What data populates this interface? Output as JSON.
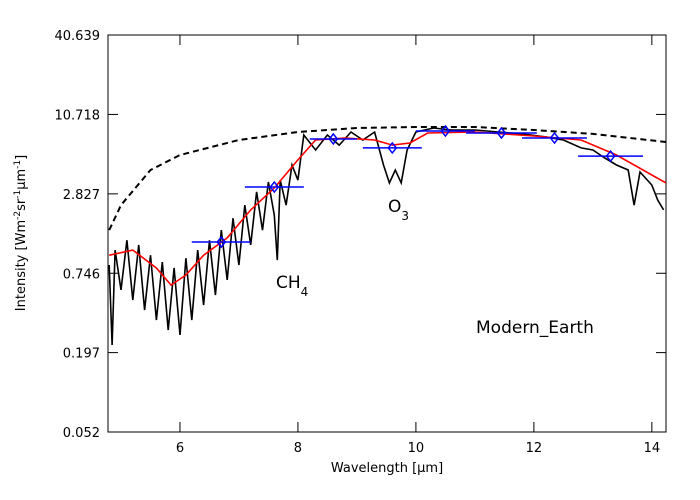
{
  "chart_data": {
    "type": "line",
    "ylabel": [
      "Intensity [Wm",
      "-2",
      "sr",
      "-1",
      "μm",
      "-1",
      "]"
    ],
    "xlabel": [
      "Wavelength [",
      "μm",
      "]"
    ],
    "annotations": [
      [
        "CH",
        "4"
      ],
      [
        "O",
        "3"
      ],
      [
        "Modern_Earth"
      ]
    ],
    "xlim": [
      4.78,
      14.24
    ],
    "xticks": [
      6,
      8,
      10,
      12,
      14
    ],
    "ylim": [
      0.052,
      40.639
    ],
    "yticks": [
      0.052,
      0.197,
      0.746,
      2.827,
      10.718,
      40.639
    ],
    "log_y": true,
    "series": [
      {
        "color": "#000000",
        "linestyle": "solid",
        "x": [
          4.8,
          4.85,
          4.9,
          5.0,
          5.1,
          5.2,
          5.3,
          5.4,
          5.5,
          5.6,
          5.7,
          5.8,
          5.9,
          6.0,
          6.1,
          6.2,
          6.3,
          6.4,
          6.5,
          6.6,
          6.7,
          6.8,
          6.9,
          7.0,
          7.1,
          7.2,
          7.3,
          7.4,
          7.5,
          7.6,
          7.65,
          7.7,
          7.8,
          7.9,
          8.0,
          8.1,
          8.3,
          8.5,
          8.7,
          8.9,
          9.1,
          9.3,
          9.45,
          9.55,
          9.65,
          9.75,
          9.85,
          10.0,
          10.3,
          10.6,
          11.0,
          11.4,
          11.8,
          12.2,
          12.5,
          12.8,
          13.0,
          13.2,
          13.4,
          13.6,
          13.7,
          13.8,
          14.0,
          14.1,
          14.2
        ],
        "values": [
          0.857,
          0.224,
          1.1,
          0.564,
          1.3,
          0.476,
          1.2,
          0.403,
          1.01,
          0.34,
          0.9,
          0.288,
          0.815,
          0.265,
          0.96,
          0.34,
          1.1,
          0.438,
          1.3,
          0.518,
          1.54,
          0.667,
          1.88,
          0.857,
          2.34,
          1.2,
          2.92,
          1.54,
          3.45,
          1.98,
          0.93,
          3.56,
          2.34,
          4.59,
          3.56,
          7.59,
          5.9,
          7.59,
          6.41,
          7.98,
          6.98,
          7.98,
          4.59,
          3.4,
          4.22,
          3.4,
          5.9,
          7.98,
          8.53,
          8.26,
          8.26,
          7.98,
          7.73,
          7.35,
          6.98,
          6.11,
          5.9,
          5.16,
          4.59,
          4.22,
          2.34,
          4.08,
          3.28,
          2.55,
          2.16
        ]
      },
      {
        "color": "#000000",
        "linestyle": "dashed",
        "x": [
          4.8,
          5.0,
          5.5,
          6.0,
          7.0,
          8.0,
          9.0,
          10.0,
          11.0,
          12.0,
          13.0,
          14.24
        ],
        "values": [
          1.54,
          2.34,
          4.22,
          5.43,
          6.98,
          7.98,
          8.53,
          8.68,
          8.68,
          8.26,
          7.73,
          6.75
        ]
      },
      {
        "color": "#ff0000",
        "linestyle": "solid",
        "x": [
          4.8,
          5.2,
          5.6,
          5.85,
          6.1,
          6.4,
          6.8,
          7.2,
          7.6,
          8.0,
          8.3,
          8.8,
          9.3,
          9.6,
          9.9,
          10.2,
          11.0,
          12.0,
          12.8,
          13.4,
          14.0,
          14.24
        ],
        "values": [
          1.01,
          1.1,
          0.815,
          0.612,
          0.724,
          1.01,
          1.35,
          2.16,
          3.12,
          5.0,
          6.98,
          7.21,
          6.98,
          6.41,
          6.64,
          7.85,
          7.98,
          7.46,
          6.98,
          5.43,
          3.88,
          3.4
        ]
      },
      {
        "color": "#0000ff",
        "linestyle": "none",
        "marker": "diamond",
        "x": [
          6.7,
          7.6,
          8.6,
          9.6,
          10.5,
          11.45,
          12.35,
          13.3
        ],
        "xerr": [
          0.5,
          0.5,
          0.4,
          0.5,
          0.5,
          0.6,
          0.55,
          0.55
        ],
        "values": [
          1.26,
          3.17,
          7.1,
          6.11,
          8.11,
          7.85,
          7.21,
          5.33
        ]
      }
    ]
  }
}
